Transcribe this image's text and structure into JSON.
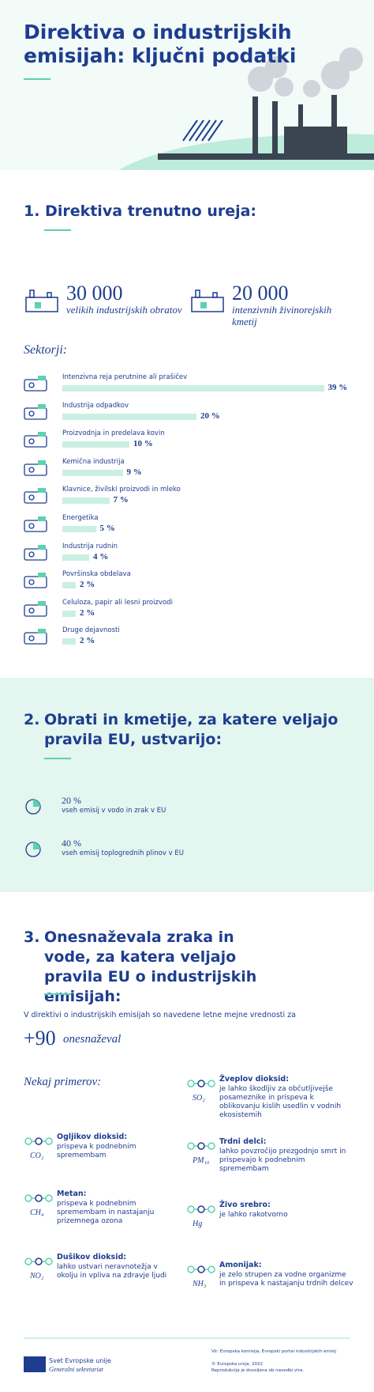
{
  "header": {
    "title": "Direktiva o industrijskih emisijah: ključni podatki"
  },
  "section1": {
    "heading": "1. Direktiva trenutno ureja:",
    "stats": [
      {
        "number": "30 000",
        "label": "velikih industrijskih obratov"
      },
      {
        "number": "20 000",
        "label": "intenzivnih živinorejskih kmetij"
      }
    ],
    "sectors_title": "Sektorji:",
    "sectors": [
      {
        "name": "Intenzivna reja perutnine ali prašičev",
        "value": 39,
        "label": "39 %"
      },
      {
        "name": "Industrija odpadkov",
        "value": 20,
        "label": "20 %"
      },
      {
        "name": "Proizvodnja in predelava kovin",
        "value": 10,
        "label": "10 %"
      },
      {
        "name": "Kemična industrija",
        "value": 9,
        "label": "9 %"
      },
      {
        "name": "Klavnice, živilski proizvodi in mleko",
        "value": 7,
        "label": "7 %"
      },
      {
        "name": "Energetika",
        "value": 5,
        "label": "5 %"
      },
      {
        "name": "Industrija rudnin",
        "value": 4,
        "label": "4 %"
      },
      {
        "name": "Površinska obdelava",
        "value": 2,
        "label": "2 %"
      },
      {
        "name": "Celuloza, papir ali lesni proizvodi",
        "value": 2,
        "label": "2 %"
      },
      {
        "name": "Druge dejavnosti",
        "value": 2,
        "label": "2 %"
      }
    ]
  },
  "section2": {
    "number": "2.",
    "heading": "Obrati in kmetije, za katere veljajo pravila EU, ustvarijo:",
    "items": [
      {
        "value": "20 %",
        "text": "vseh emisij v vodo in zrak v EU"
      },
      {
        "value": "40 %",
        "text": "vseh emisij toplogrednih plinov v EU"
      }
    ]
  },
  "section3": {
    "number": "3.",
    "heading": "Onesnaževala zraka in vode, za katera veljajo pravila EU o industrijskih emisijah:",
    "intro": "V direktivi o industrijskih emisijah so navedene letne mejne vrednosti za",
    "count": "+90",
    "count_label": "onesnaževal",
    "examples_title": "Nekaj primerov:",
    "examples": [
      {
        "name": "Ogljikov dioksid:",
        "formula": "CO₂",
        "text": "prispeva k podnebnim spremembam"
      },
      {
        "name": "Metan:",
        "formula": "CH₄",
        "text": "prispeva k podnebnim spremembam in nastajanju prizemnega ozona"
      },
      {
        "name": "Dušikov dioksid:",
        "formula": "NO₂",
        "text": "lahko ustvari neravnotežja v okolju in vpliva na zdravje ljudi"
      },
      {
        "name": "Žveplov dioksid:",
        "formula": "SO₂",
        "text": "je lahko škodljiv za občutljivejše posameznike in prispeva k oblikovanju kislih usedlin v vodnih ekosistemih"
      },
      {
        "name": "Trdni delci:",
        "formula": "PM₁₀",
        "text": "lahko povzročijo prezgodnjo smrt in prispevajo k podnebnim spremembam"
      },
      {
        "name": "Živo srebro:",
        "formula": "Hg",
        "text": "je lahko rakotvorno"
      },
      {
        "name": "Amonijak:",
        "formula": "NH₃",
        "text": "je zelo strupen za vodne organizme in prispeva k nastajanju trdnih delcev"
      }
    ]
  },
  "footer": {
    "org": "Svet Evropske unije",
    "unit": "Generalni sekretariat",
    "source": "Vir: Evropska komisija, Evropski portal industrijskih emisij",
    "copyright": "© Evropska unija, 2022",
    "reproduction": "Reprodukcija je dovoljena ob navedbi vira."
  }
}
